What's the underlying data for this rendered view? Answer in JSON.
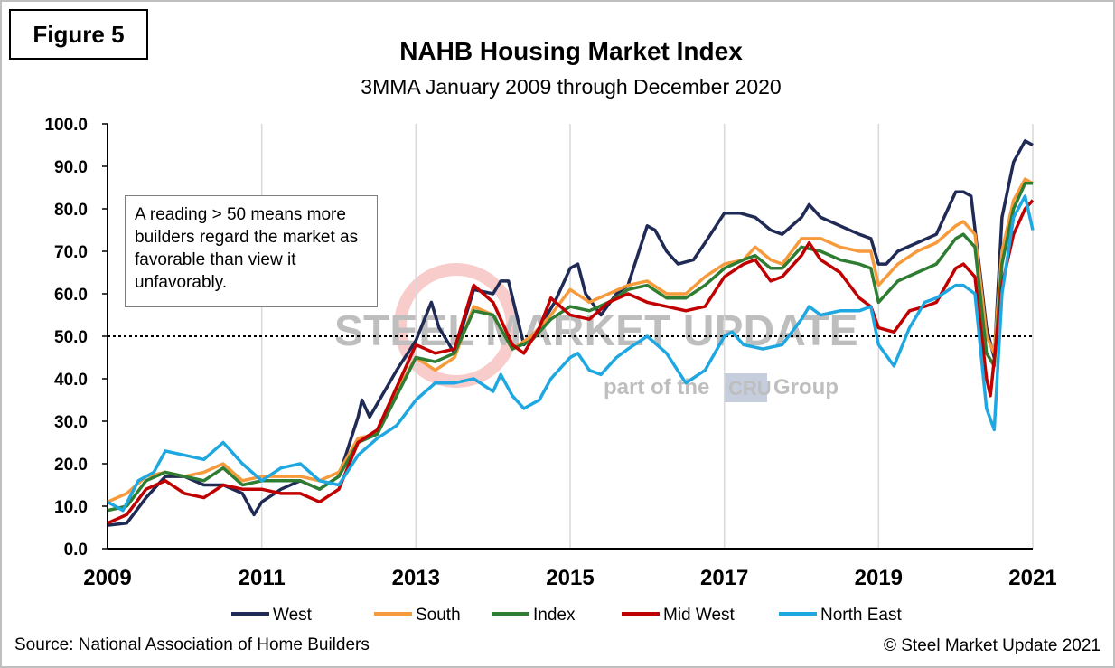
{
  "figure_label": "Figure 5",
  "annotation": "A reading > 50 means more builders regard the market as favorable than view it unfavorably.",
  "source": "Source: National Association of Home Builders",
  "copyright": "© Steel Market Update 2021",
  "watermark": {
    "brand": "STEEL MARKET UPDATE",
    "tagline_pre": "part of the",
    "tagline_mark": "CRU",
    "tagline_post": "Group"
  },
  "chart_data": {
    "type": "line",
    "title": "NAHB Housing Market Index",
    "subtitle": "3MMA January 2009 through December 2020",
    "xlabel": "",
    "ylabel": "",
    "ylim": [
      0,
      100
    ],
    "xlim": [
      2009,
      2021
    ],
    "x_ticks": [
      "2009",
      "2011",
      "2013",
      "2015",
      "2017",
      "2019",
      "2021"
    ],
    "y_ticks": [
      "0.0",
      "10.0",
      "20.0",
      "30.0",
      "40.0",
      "50.0",
      "60.0",
      "70.0",
      "80.0",
      "90.0",
      "100.0"
    ],
    "reference_line": 50,
    "grid": "vertical",
    "legend_position": "bottom",
    "series": [
      {
        "name": "West",
        "color": "#1f2a55",
        "points": [
          [
            2009.0,
            5.5
          ],
          [
            2009.25,
            6
          ],
          [
            2009.5,
            12
          ],
          [
            2009.75,
            17
          ],
          [
            2010.0,
            17
          ],
          [
            2010.25,
            15
          ],
          [
            2010.5,
            15
          ],
          [
            2010.75,
            13
          ],
          [
            2010.9,
            8
          ],
          [
            2011.0,
            11
          ],
          [
            2011.25,
            14
          ],
          [
            2011.5,
            16
          ],
          [
            2011.75,
            14
          ],
          [
            2012.0,
            17
          ],
          [
            2012.25,
            31
          ],
          [
            2012.3,
            35
          ],
          [
            2012.4,
            31
          ],
          [
            2012.75,
            42
          ],
          [
            2013.0,
            49
          ],
          [
            2013.2,
            58
          ],
          [
            2013.3,
            52
          ],
          [
            2013.5,
            46
          ],
          [
            2013.75,
            61
          ],
          [
            2014.0,
            60
          ],
          [
            2014.1,
            63
          ],
          [
            2014.2,
            63
          ],
          [
            2014.4,
            48
          ],
          [
            2014.6,
            52
          ],
          [
            2014.8,
            58
          ],
          [
            2015.0,
            66
          ],
          [
            2015.1,
            67
          ],
          [
            2015.2,
            60
          ],
          [
            2015.4,
            55
          ],
          [
            2015.6,
            60
          ],
          [
            2015.75,
            62
          ],
          [
            2016.0,
            76
          ],
          [
            2016.1,
            75
          ],
          [
            2016.25,
            70
          ],
          [
            2016.4,
            67
          ],
          [
            2016.6,
            68
          ],
          [
            2016.75,
            72
          ],
          [
            2017.0,
            79
          ],
          [
            2017.2,
            79
          ],
          [
            2017.4,
            78
          ],
          [
            2017.6,
            75
          ],
          [
            2017.75,
            74
          ],
          [
            2018.0,
            78
          ],
          [
            2018.1,
            81
          ],
          [
            2018.25,
            78
          ],
          [
            2018.5,
            76
          ],
          [
            2018.75,
            74
          ],
          [
            2018.9,
            73
          ],
          [
            2019.0,
            67
          ],
          [
            2019.1,
            67
          ],
          [
            2019.25,
            70
          ],
          [
            2019.5,
            72
          ],
          [
            2019.75,
            74
          ],
          [
            2020.0,
            84
          ],
          [
            2020.1,
            84
          ],
          [
            2020.2,
            83
          ],
          [
            2020.4,
            52
          ],
          [
            2020.5,
            45
          ],
          [
            2020.6,
            78
          ],
          [
            2020.75,
            91
          ],
          [
            2020.9,
            96
          ],
          [
            2021.0,
            95
          ]
        ]
      },
      {
        "name": "South",
        "color": "#f79a3c",
        "points": [
          [
            2009.0,
            11
          ],
          [
            2009.25,
            13
          ],
          [
            2009.5,
            17
          ],
          [
            2009.75,
            18
          ],
          [
            2010.0,
            17
          ],
          [
            2010.25,
            18
          ],
          [
            2010.5,
            20
          ],
          [
            2010.75,
            16
          ],
          [
            2011.0,
            17
          ],
          [
            2011.25,
            17
          ],
          [
            2011.5,
            17
          ],
          [
            2011.75,
            16
          ],
          [
            2012.0,
            18
          ],
          [
            2012.25,
            26
          ],
          [
            2012.5,
            27
          ],
          [
            2012.75,
            37
          ],
          [
            2013.0,
            45
          ],
          [
            2013.25,
            42
          ],
          [
            2013.5,
            45
          ],
          [
            2013.75,
            57
          ],
          [
            2014.0,
            55
          ],
          [
            2014.25,
            47
          ],
          [
            2014.5,
            50
          ],
          [
            2014.75,
            55
          ],
          [
            2015.0,
            61
          ],
          [
            2015.25,
            58
          ],
          [
            2015.5,
            60
          ],
          [
            2015.75,
            62
          ],
          [
            2016.0,
            63
          ],
          [
            2016.25,
            60
          ],
          [
            2016.5,
            60
          ],
          [
            2016.75,
            64
          ],
          [
            2017.0,
            67
          ],
          [
            2017.25,
            68
          ],
          [
            2017.4,
            71
          ],
          [
            2017.6,
            68
          ],
          [
            2017.75,
            67
          ],
          [
            2018.0,
            73
          ],
          [
            2018.25,
            73
          ],
          [
            2018.5,
            71
          ],
          [
            2018.75,
            70
          ],
          [
            2018.9,
            70
          ],
          [
            2019.0,
            62
          ],
          [
            2019.25,
            67
          ],
          [
            2019.5,
            70
          ],
          [
            2019.75,
            72
          ],
          [
            2020.0,
            76
          ],
          [
            2020.1,
            77
          ],
          [
            2020.25,
            74
          ],
          [
            2020.4,
            50
          ],
          [
            2020.5,
            46
          ],
          [
            2020.6,
            70
          ],
          [
            2020.75,
            82
          ],
          [
            2020.9,
            87
          ],
          [
            2021.0,
            86
          ]
        ]
      },
      {
        "name": "Index",
        "color": "#2e7d32",
        "points": [
          [
            2009.0,
            9
          ],
          [
            2009.25,
            10
          ],
          [
            2009.5,
            16
          ],
          [
            2009.75,
            18
          ],
          [
            2010.0,
            17
          ],
          [
            2010.25,
            16
          ],
          [
            2010.5,
            19
          ],
          [
            2010.75,
            15
          ],
          [
            2011.0,
            16
          ],
          [
            2011.25,
            16
          ],
          [
            2011.5,
            16
          ],
          [
            2011.75,
            14
          ],
          [
            2012.0,
            17
          ],
          [
            2012.25,
            25
          ],
          [
            2012.5,
            27
          ],
          [
            2012.75,
            36
          ],
          [
            2013.0,
            45
          ],
          [
            2013.25,
            44
          ],
          [
            2013.5,
            46
          ],
          [
            2013.75,
            56
          ],
          [
            2014.0,
            55
          ],
          [
            2014.25,
            47
          ],
          [
            2014.5,
            49
          ],
          [
            2014.75,
            54
          ],
          [
            2015.0,
            57
          ],
          [
            2015.25,
            56
          ],
          [
            2015.5,
            58
          ],
          [
            2015.75,
            61
          ],
          [
            2016.0,
            62
          ],
          [
            2016.25,
            59
          ],
          [
            2016.5,
            59
          ],
          [
            2016.75,
            62
          ],
          [
            2017.0,
            66
          ],
          [
            2017.25,
            68
          ],
          [
            2017.4,
            69
          ],
          [
            2017.6,
            66
          ],
          [
            2017.75,
            66
          ],
          [
            2018.0,
            71
          ],
          [
            2018.25,
            70
          ],
          [
            2018.5,
            68
          ],
          [
            2018.75,
            67
          ],
          [
            2018.9,
            66
          ],
          [
            2019.0,
            58
          ],
          [
            2019.25,
            63
          ],
          [
            2019.5,
            65
          ],
          [
            2019.75,
            67
          ],
          [
            2020.0,
            73
          ],
          [
            2020.1,
            74
          ],
          [
            2020.25,
            71
          ],
          [
            2020.4,
            46
          ],
          [
            2020.5,
            43
          ],
          [
            2020.6,
            67
          ],
          [
            2020.75,
            80
          ],
          [
            2020.9,
            86
          ],
          [
            2021.0,
            86
          ]
        ]
      },
      {
        "name": "Mid West",
        "color": "#c00000",
        "points": [
          [
            2009.0,
            6
          ],
          [
            2009.25,
            8
          ],
          [
            2009.5,
            14
          ],
          [
            2009.75,
            16
          ],
          [
            2010.0,
            13
          ],
          [
            2010.25,
            12
          ],
          [
            2010.5,
            15
          ],
          [
            2010.75,
            14
          ],
          [
            2011.0,
            14
          ],
          [
            2011.25,
            13
          ],
          [
            2011.5,
            13
          ],
          [
            2011.75,
            11
          ],
          [
            2012.0,
            14
          ],
          [
            2012.25,
            25
          ],
          [
            2012.5,
            28
          ],
          [
            2012.75,
            38
          ],
          [
            2013.0,
            48
          ],
          [
            2013.25,
            46
          ],
          [
            2013.5,
            47
          ],
          [
            2013.75,
            62
          ],
          [
            2014.0,
            58
          ],
          [
            2014.25,
            48
          ],
          [
            2014.4,
            46
          ],
          [
            2014.6,
            52
          ],
          [
            2014.75,
            59
          ],
          [
            2015.0,
            55
          ],
          [
            2015.25,
            54
          ],
          [
            2015.5,
            58
          ],
          [
            2015.75,
            60
          ],
          [
            2016.0,
            58
          ],
          [
            2016.25,
            57
          ],
          [
            2016.5,
            56
          ],
          [
            2016.75,
            57
          ],
          [
            2017.0,
            64
          ],
          [
            2017.25,
            67
          ],
          [
            2017.4,
            68
          ],
          [
            2017.6,
            63
          ],
          [
            2017.75,
            64
          ],
          [
            2018.0,
            69
          ],
          [
            2018.1,
            72
          ],
          [
            2018.25,
            68
          ],
          [
            2018.5,
            65
          ],
          [
            2018.75,
            59
          ],
          [
            2018.9,
            57
          ],
          [
            2019.0,
            52
          ],
          [
            2019.2,
            51
          ],
          [
            2019.4,
            56
          ],
          [
            2019.6,
            57
          ],
          [
            2019.75,
            58
          ],
          [
            2020.0,
            66
          ],
          [
            2020.1,
            67
          ],
          [
            2020.25,
            64
          ],
          [
            2020.4,
            40
          ],
          [
            2020.45,
            36
          ],
          [
            2020.6,
            62
          ],
          [
            2020.75,
            74
          ],
          [
            2020.9,
            80
          ],
          [
            2021.0,
            82
          ]
        ]
      },
      {
        "name": "North East",
        "color": "#1ea7e1",
        "points": [
          [
            2009.0,
            11
          ],
          [
            2009.2,
            9
          ],
          [
            2009.4,
            16
          ],
          [
            2009.6,
            18
          ],
          [
            2009.75,
            23
          ],
          [
            2010.0,
            22
          ],
          [
            2010.25,
            21
          ],
          [
            2010.5,
            25
          ],
          [
            2010.75,
            20
          ],
          [
            2011.0,
            16
          ],
          [
            2011.25,
            19
          ],
          [
            2011.5,
            20
          ],
          [
            2011.75,
            16
          ],
          [
            2012.0,
            15
          ],
          [
            2012.25,
            22
          ],
          [
            2012.5,
            26
          ],
          [
            2012.75,
            29
          ],
          [
            2013.0,
            35
          ],
          [
            2013.25,
            39
          ],
          [
            2013.5,
            39
          ],
          [
            2013.75,
            40
          ],
          [
            2014.0,
            37
          ],
          [
            2014.1,
            41
          ],
          [
            2014.25,
            36
          ],
          [
            2014.4,
            33
          ],
          [
            2014.6,
            35
          ],
          [
            2014.75,
            40
          ],
          [
            2015.0,
            45
          ],
          [
            2015.1,
            46
          ],
          [
            2015.25,
            42
          ],
          [
            2015.4,
            41
          ],
          [
            2015.6,
            45
          ],
          [
            2015.75,
            47
          ],
          [
            2016.0,
            50
          ],
          [
            2016.25,
            46
          ],
          [
            2016.5,
            39
          ],
          [
            2016.75,
            42
          ],
          [
            2017.0,
            50
          ],
          [
            2017.1,
            51
          ],
          [
            2017.25,
            48
          ],
          [
            2017.5,
            47
          ],
          [
            2017.75,
            48
          ],
          [
            2018.0,
            54
          ],
          [
            2018.1,
            57
          ],
          [
            2018.25,
            55
          ],
          [
            2018.5,
            56
          ],
          [
            2018.75,
            56
          ],
          [
            2018.9,
            57
          ],
          [
            2019.0,
            48
          ],
          [
            2019.2,
            43
          ],
          [
            2019.4,
            52
          ],
          [
            2019.6,
            58
          ],
          [
            2019.75,
            59
          ],
          [
            2020.0,
            62
          ],
          [
            2020.1,
            62
          ],
          [
            2020.25,
            60
          ],
          [
            2020.4,
            33
          ],
          [
            2020.5,
            28
          ],
          [
            2020.6,
            60
          ],
          [
            2020.75,
            78
          ],
          [
            2020.9,
            83
          ],
          [
            2021.0,
            75
          ]
        ]
      }
    ]
  }
}
